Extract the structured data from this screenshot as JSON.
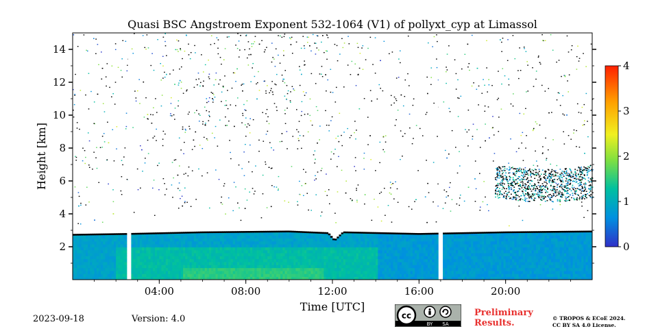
{
  "chart_data": {
    "type": "heatmap",
    "title": "Quasi BSC Angstroem Exponent 532-1064 (V1) of pollyxt_cyp at Limassol",
    "xlabel": "Time [UTC]",
    "ylabel": "Height [km]",
    "x_unit": "hours UTC",
    "xlim": [
      0,
      24
    ],
    "ylim": [
      0,
      15
    ],
    "x_ticks": [
      {
        "value": 4,
        "label": "04:00"
      },
      {
        "value": 8,
        "label": "08:00"
      },
      {
        "value": 12,
        "label": "12:00"
      },
      {
        "value": 16,
        "label": "16:00"
      },
      {
        "value": 20,
        "label": "20:00"
      }
    ],
    "y_ticks": [
      {
        "value": 2,
        "label": "2"
      },
      {
        "value": 4,
        "label": "4"
      },
      {
        "value": 6,
        "label": "6"
      },
      {
        "value": 8,
        "label": "8"
      },
      {
        "value": 10,
        "label": "10"
      },
      {
        "value": 12,
        "label": "12"
      },
      {
        "value": 14,
        "label": "14"
      }
    ],
    "colorbar": {
      "range": [
        0,
        4
      ],
      "ticks": [
        {
          "value": 0,
          "label": "0"
        },
        {
          "value": 1,
          "label": "1"
        },
        {
          "value": 2,
          "label": "2"
        },
        {
          "value": 3,
          "label": "3"
        },
        {
          "value": 4,
          "label": "4"
        }
      ],
      "colormap": [
        "#3030c8",
        "#0090e0",
        "#00c0a0",
        "#80e040",
        "#f0f020",
        "#ffa000",
        "#ff2000"
      ]
    },
    "data_gaps_hours": [
      [
        2.55,
        2.7
      ],
      [
        16.9,
        17.05
      ]
    ],
    "boundary_layer_top_km": [
      {
        "t": 0.0,
        "h": 2.7
      },
      {
        "t": 2.5,
        "h": 2.75
      },
      {
        "t": 6,
        "h": 2.85
      },
      {
        "t": 10,
        "h": 2.9
      },
      {
        "t": 11.8,
        "h": 2.8
      },
      {
        "t": 12.1,
        "h": 2.35
      },
      {
        "t": 12.5,
        "h": 2.85
      },
      {
        "t": 16,
        "h": 2.75
      },
      {
        "t": 20,
        "h": 2.85
      },
      {
        "t": 24,
        "h": 2.9
      }
    ],
    "elevated_layer": {
      "t_start": 19.5,
      "t_end": 24,
      "h_bottom_km": 5.0,
      "h_top_km": 7.0
    }
  },
  "footer": {
    "date": "2023-09-18",
    "version": "Version: 4.0",
    "preliminary_line1": "Preliminary",
    "preliminary_line2": "Results.",
    "license_line1": "© TROPOS & ECoE 2024.",
    "license_line2": "CC BY SA 4.0 License.",
    "cc_badge_text_by": "BY",
    "cc_badge_text_sa": "SA"
  }
}
